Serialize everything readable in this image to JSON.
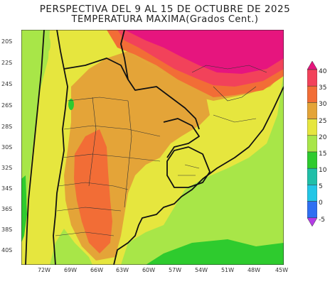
{
  "title": {
    "line1": "PERSPECTIVA DEL 9 AL 15 DE OCTUBRE DE 2025",
    "line2": "TEMPERATURA MAXIMA(Grados Cent.)"
  },
  "map": {
    "latitude_labels": [
      "20S",
      "22S",
      "24S",
      "26S",
      "28S",
      "30S",
      "32S",
      "34S",
      "36S",
      "38S",
      "40S"
    ],
    "longitude_labels": [
      "72W",
      "69W",
      "66W",
      "63W",
      "60W",
      "57W",
      "54W",
      "51W",
      "48W",
      "45W"
    ]
  },
  "colorbar": {
    "labels": [
      "40",
      "35",
      "30",
      "25",
      "20",
      "15",
      "10",
      "5",
      "0",
      "-5"
    ],
    "bands": [
      {
        "from": 40,
        "to": 45,
        "color": "#e6157e"
      },
      {
        "from": 35,
        "to": 40,
        "color": "#f2425a"
      },
      {
        "from": 30,
        "to": 35,
        "color": "#f26d36"
      },
      {
        "from": 25,
        "to": 30,
        "color": "#e4a438"
      },
      {
        "from": 20,
        "to": 25,
        "color": "#e6e63e"
      },
      {
        "from": 15,
        "to": 20,
        "color": "#a8e648"
      },
      {
        "from": 10,
        "to": 15,
        "color": "#2ecb2e"
      },
      {
        "from": 5,
        "to": 10,
        "color": "#1fbfa8"
      },
      {
        "from": 0,
        "to": 5,
        "color": "#22c6e6"
      },
      {
        "from": -5,
        "to": 0,
        "color": "#2f6ff2"
      },
      {
        "from": -10,
        "to": -5,
        "color": "#b43ce6"
      }
    ]
  }
}
